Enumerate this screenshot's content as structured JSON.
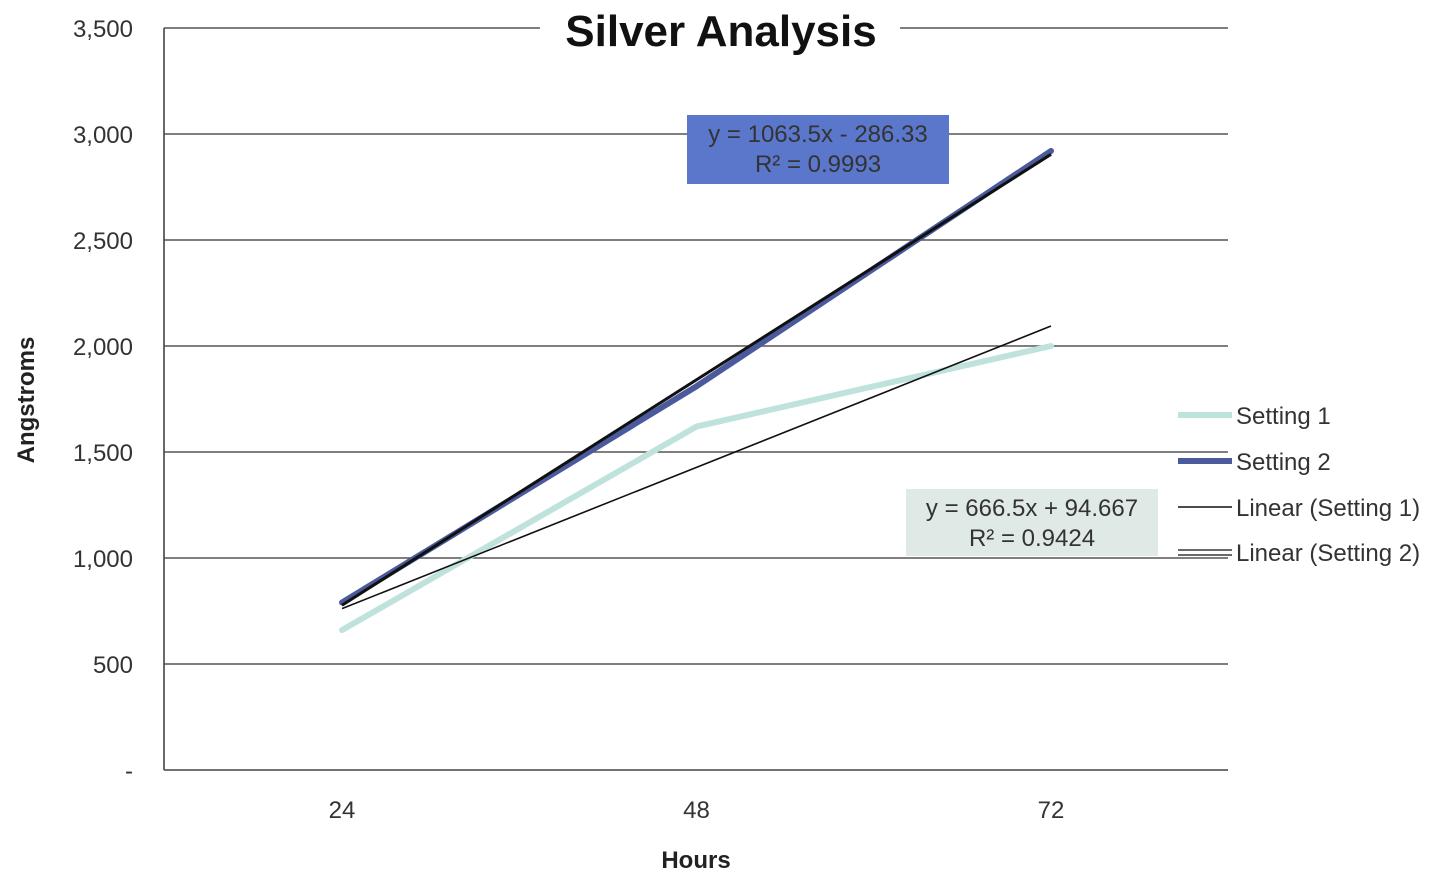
{
  "chart_data": {
    "type": "line",
    "title": "Silver Analysis",
    "xlabel": "Hours",
    "ylabel": "Angstroms",
    "categories": [
      "24",
      "48",
      "72"
    ],
    "y_tick_labels": [
      "-",
      "500",
      "1,000",
      "1,500",
      "2,000",
      "2,500",
      "3,000",
      "3,500"
    ],
    "ylim": [
      0,
      3500
    ],
    "y_step": 500,
    "grid": true,
    "legend_position": "right",
    "series": [
      {
        "name": "Setting 1",
        "values": [
          660,
          1620,
          2000
        ],
        "color": "#bfe3dc",
        "style": "thick"
      },
      {
        "name": "Setting 2",
        "values": [
          790,
          1810,
          2920
        ],
        "color": "#4a5a9c",
        "style": "thick"
      }
    ],
    "trendlines": [
      {
        "name": "Linear (Setting 1)",
        "slope": 666.5,
        "intercept": 94.667,
        "color": "#111111",
        "style": "thin"
      },
      {
        "name": "Linear (Setting 2)",
        "slope": 1063.5,
        "intercept": -286.33,
        "color": "#111111",
        "style": "double"
      }
    ],
    "annotations": [
      {
        "line1": "y = 1063.5x - 286.33",
        "line2": "R² = 0.9993",
        "bg": "#5b77cc"
      },
      {
        "line1": "y = 666.5x + 94.667",
        "line2": "R² = 0.9424",
        "bg": "#dfe9e5"
      }
    ]
  }
}
